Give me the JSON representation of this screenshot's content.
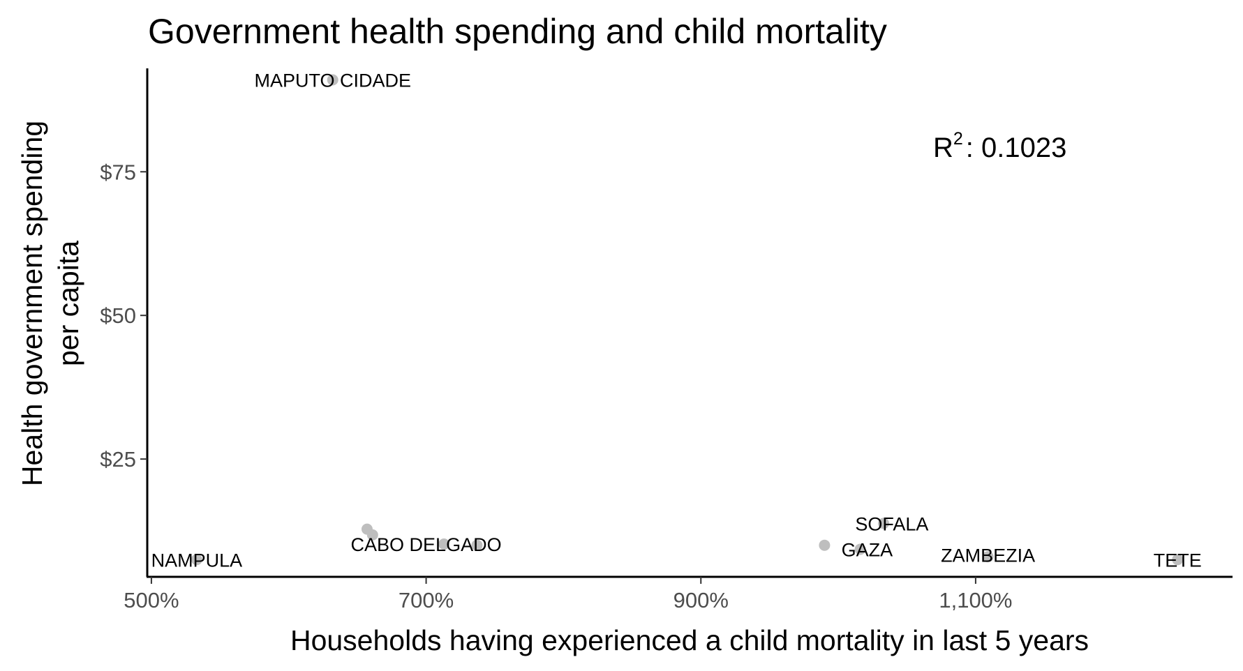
{
  "chart_data": {
    "type": "scatter",
    "title": "Government health spending and child mortality",
    "xlabel": "Households having experienced a child mortality in last 5 years",
    "ylabel_lines": [
      "Health government spending",
      "per capita"
    ],
    "xlim": [
      497,
      1287
    ],
    "ylim": [
      4.5,
      93
    ],
    "x_ticks": [
      {
        "value": 500,
        "label": "500%"
      },
      {
        "value": 700,
        "label": "700%"
      },
      {
        "value": 900,
        "label": "900%"
      },
      {
        "value": 1100,
        "label": "1,100%"
      }
    ],
    "y_ticks": [
      {
        "value": 25,
        "label": "$25"
      },
      {
        "value": 50,
        "label": "$50"
      },
      {
        "value": 75,
        "label": "$75"
      }
    ],
    "points": [
      {
        "x": 632,
        "y": 91
      },
      {
        "x": 657,
        "y": 12.8
      },
      {
        "x": 661,
        "y": 11.8
      },
      {
        "x": 713,
        "y": 10.2
      },
      {
        "x": 737,
        "y": 10
      },
      {
        "x": 990,
        "y": 10
      },
      {
        "x": 1016,
        "y": 9.3
      },
      {
        "x": 1033,
        "y": 13.8
      },
      {
        "x": 1109,
        "y": 8
      },
      {
        "x": 1247,
        "y": 7.5
      },
      {
        "x": 533,
        "y": 7.5
      }
    ],
    "labels": [
      {
        "text": "MAPUTO CIDADE",
        "x": 632,
        "y": 91
      },
      {
        "text": "CABO DELGADO",
        "x": 700,
        "y": 10.2
      },
      {
        "text": "SOFALA",
        "x": 1039,
        "y": 13.8
      },
      {
        "text": "GAZA",
        "x": 1021,
        "y": 9.3
      },
      {
        "text": "ZAMBEZIA",
        "x": 1109,
        "y": 8.3
      },
      {
        "text": "TETE",
        "x": 1247,
        "y": 7.5
      },
      {
        "text": "NAMPULA",
        "x": 533,
        "y": 7.5
      }
    ],
    "annotation": {
      "base": "R",
      "sup": "2",
      "text": ": 0.1023"
    },
    "point_color": "#bebebe",
    "grid": false,
    "legend": "none"
  }
}
